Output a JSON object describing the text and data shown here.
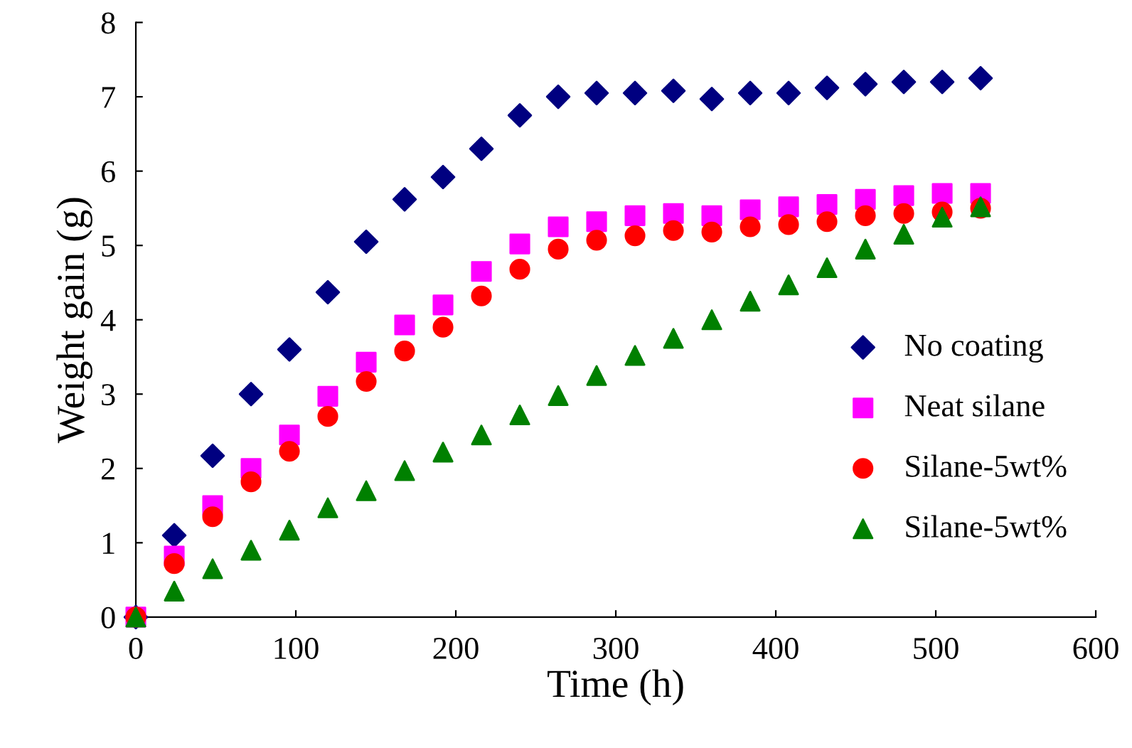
{
  "chart_data": {
    "type": "scatter",
    "xlabel": "Time (h)",
    "ylabel": "Weight gain (g)",
    "x": [
      0,
      24,
      48,
      72,
      96,
      120,
      144,
      168,
      192,
      216,
      240,
      264,
      288,
      312,
      336,
      360,
      384,
      408,
      432,
      456,
      480,
      504,
      528
    ],
    "series": [
      {
        "name": "No coating",
        "color": "#000080",
        "marker": "diamond",
        "values": [
          0,
          1.1,
          2.17,
          3.0,
          3.6,
          4.37,
          5.05,
          5.62,
          5.92,
          6.3,
          6.75,
          7.0,
          7.05,
          7.05,
          7.08,
          6.97,
          7.05,
          7.05,
          7.12,
          7.17,
          7.2,
          7.2,
          7.25
        ]
      },
      {
        "name": "Neat silane",
        "color": "#ff00ff",
        "marker": "square",
        "values": [
          0,
          0.82,
          1.5,
          2.0,
          2.45,
          2.97,
          3.43,
          3.93,
          4.2,
          4.65,
          5.02,
          5.25,
          5.32,
          5.4,
          5.43,
          5.4,
          5.48,
          5.52,
          5.55,
          5.62,
          5.67,
          5.7,
          5.7
        ]
      },
      {
        "name": "Silane-5wt%",
        "color": "#ff0000",
        "marker": "circle",
        "values": [
          0,
          0.72,
          1.35,
          1.82,
          2.23,
          2.7,
          3.17,
          3.58,
          3.9,
          4.32,
          4.68,
          4.95,
          5.07,
          5.13,
          5.2,
          5.18,
          5.25,
          5.28,
          5.32,
          5.4,
          5.43,
          5.45,
          5.5
        ]
      },
      {
        "name": "Silane-5wt%",
        "color": "#008000",
        "marker": "triangle",
        "values": [
          0,
          0.35,
          0.65,
          0.9,
          1.17,
          1.47,
          1.7,
          1.97,
          2.22,
          2.45,
          2.72,
          2.98,
          3.25,
          3.52,
          3.75,
          4.0,
          4.25,
          4.47,
          4.7,
          4.95,
          5.15,
          5.38,
          5.52
        ]
      }
    ],
    "xlim": [
      0,
      600
    ],
    "xticks": [
      0,
      100,
      200,
      300,
      400,
      500,
      600
    ],
    "ylim": [
      0,
      8
    ],
    "yticks": [
      0,
      1,
      2,
      3,
      4,
      5,
      6,
      7,
      8
    ],
    "grid": false,
    "legend": "right"
  }
}
